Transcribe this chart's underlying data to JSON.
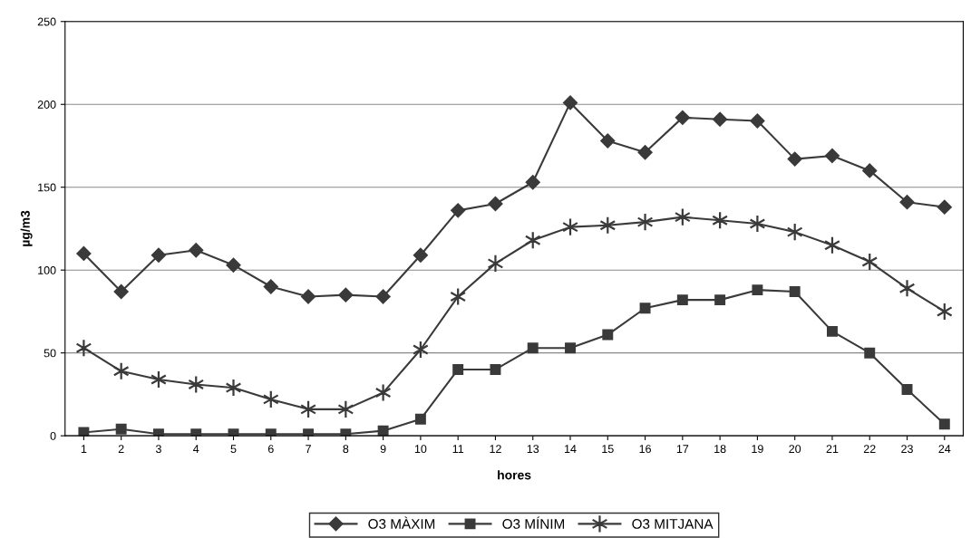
{
  "chart_data": {
    "type": "line",
    "xlabel": "hores",
    "ylabel": "µg/m3",
    "categories": [
      "1",
      "2",
      "3",
      "4",
      "5",
      "6",
      "7",
      "8",
      "9",
      "10",
      "11",
      "12",
      "13",
      "14",
      "15",
      "16",
      "17",
      "18",
      "19",
      "20",
      "21",
      "22",
      "23",
      "24"
    ],
    "series": [
      {
        "name": "O3 MÀXIM",
        "color": "#3a3a3a",
        "marker": "diamond",
        "values": [
          110,
          87,
          109,
          112,
          103,
          90,
          84,
          85,
          84,
          109,
          136,
          140,
          153,
          201,
          178,
          171,
          192,
          191,
          190,
          167,
          169,
          160,
          141,
          138
        ]
      },
      {
        "name": "O3 MÍNIM",
        "color": "#3a3a3a",
        "marker": "square",
        "values": [
          2,
          4,
          1,
          1,
          1,
          1,
          1,
          1,
          3,
          10,
          40,
          40,
          53,
          53,
          61,
          77,
          82,
          82,
          88,
          87,
          63,
          50,
          28,
          7
        ]
      },
      {
        "name": "O3 MITJANA",
        "color": "#3a3a3a",
        "marker": "cross",
        "values": [
          53,
          39,
          34,
          31,
          29,
          22,
          16,
          16,
          26,
          52,
          84,
          104,
          118,
          126,
          127,
          129,
          132,
          130,
          128,
          123,
          115,
          105,
          89,
          75
        ]
      }
    ],
    "ylim": [
      0,
      250
    ],
    "yticks": [
      0,
      50,
      100,
      150,
      200,
      250
    ],
    "grid": "y",
    "legend": "bottom",
    "line_style": "solid"
  }
}
